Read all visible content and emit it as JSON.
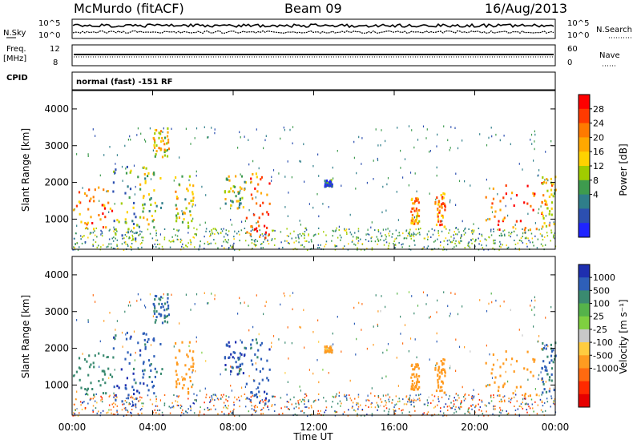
{
  "header": {
    "station": "McMurdo (fitACF)",
    "beam": "Beam 09",
    "date": "16/Aug/2013"
  },
  "top_panels": {
    "noise": {
      "left_label_1": "N.Sky",
      "right_label_1": "N.Search",
      "left_ticks": [
        "10^5",
        "10^0"
      ],
      "right_ticks": [
        "10^5",
        "10^0"
      ]
    },
    "freq": {
      "left_label_1": "Freq.",
      "left_label_2": "[MHz]",
      "right_label_1": "Nave",
      "left_ticks": [
        "12",
        "8"
      ],
      "right_ticks": [
        "60",
        "0"
      ]
    },
    "cpid": {
      "label": "CPID",
      "text": "normal (fast) -151 RF"
    }
  },
  "x_axis": {
    "label": "Time UT",
    "ticks": [
      "00:00",
      "04:00",
      "08:00",
      "12:00",
      "16:00",
      "20:00",
      "00:00"
    ]
  },
  "power_panel": {
    "ylabel": "Slant Range [km]",
    "yticks": [
      "4000",
      "3000",
      "2000",
      "1000"
    ],
    "colorbar_label": "Power [dB]",
    "colorbar_ticks": [
      "28",
      "24",
      "20",
      "16",
      "12",
      "8",
      "4"
    ],
    "colorbar_colors": [
      "#ff0000",
      "#ff3a00",
      "#ff7a00",
      "#ffa800",
      "#ffd200",
      "#a0cc00",
      "#3e9b4e",
      "#2f7e8a",
      "#2c4fb0",
      "#1f24ff"
    ]
  },
  "velocity_panel": {
    "ylabel": "Slant Range [km]",
    "yticks": [
      "4000",
      "3000",
      "2000",
      "1000"
    ],
    "colorbar_label": "Velocity [m s⁻¹]",
    "colorbar_ticks": [
      "1000",
      "500",
      "100",
      "25",
      "-25",
      "-100",
      "-500",
      "-1000"
    ],
    "colorbar_colors": [
      "#1e2fb0",
      "#2e5fb8",
      "#3a8a70",
      "#55b34a",
      "#7fd040",
      "#c8c8c8",
      "#ffcc40",
      "#ff9b20",
      "#ff6a10",
      "#ff2a00",
      "#e60000"
    ]
  },
  "chart_data": [
    {
      "type": "heatmap",
      "title": "Power",
      "xlabel": "Time UT",
      "ylabel": "Slant Range [km]",
      "xlim": [
        0,
        24
      ],
      "ylim": [
        180,
        4500
      ],
      "colorbar": "Power [dB]",
      "features": [
        {
          "t_start": 0.0,
          "t_end": 2.0,
          "range_low": 700,
          "range_high": 1900,
          "power_db": 24
        },
        {
          "t_start": 2.0,
          "t_end": 3.3,
          "range_low": 400,
          "range_high": 2500,
          "power_db": 10
        },
        {
          "t_start": 3.3,
          "t_end": 4.5,
          "range_low": 800,
          "range_high": 2500,
          "power_db": 14
        },
        {
          "t_start": 4.0,
          "t_end": 4.8,
          "range_low": 2700,
          "range_high": 3500,
          "power_db": 18
        },
        {
          "t_start": 5.0,
          "t_end": 6.0,
          "range_low": 800,
          "range_high": 2200,
          "power_db": 16
        },
        {
          "t_start": 7.5,
          "t_end": 8.6,
          "range_low": 1300,
          "range_high": 2200,
          "power_db": 14
        },
        {
          "t_start": 8.6,
          "t_end": 9.8,
          "range_low": 500,
          "range_high": 2300,
          "power_db": 26
        },
        {
          "t_start": 12.5,
          "t_end": 12.9,
          "range_low": 1900,
          "range_high": 2100,
          "power_db": 6
        },
        {
          "t_start": 16.8,
          "t_end": 17.2,
          "range_low": 900,
          "range_high": 1600,
          "power_db": 22
        },
        {
          "t_start": 18.0,
          "t_end": 18.5,
          "range_low": 800,
          "range_high": 1800,
          "power_db": 24
        },
        {
          "t_start": 20.5,
          "t_end": 23.3,
          "range_low": 700,
          "range_high": 2100,
          "power_db": 26
        },
        {
          "t_start": 23.3,
          "t_end": 24.0,
          "range_low": 800,
          "range_high": 2200,
          "power_db": 20
        }
      ]
    },
    {
      "type": "heatmap",
      "title": "Velocity",
      "xlabel": "Time UT",
      "ylabel": "Slant Range [km]",
      "xlim": [
        0,
        24
      ],
      "ylim": [
        180,
        4500
      ],
      "colorbar": "Velocity [m s⁻¹]",
      "features": [
        {
          "t_start": 0.0,
          "t_end": 2.0,
          "range_low": 700,
          "range_high": 1900,
          "velocity": 300
        },
        {
          "t_start": 2.0,
          "t_end": 3.3,
          "range_low": 400,
          "range_high": 2500,
          "velocity": 800
        },
        {
          "t_start": 3.3,
          "t_end": 4.5,
          "range_low": 800,
          "range_high": 2500,
          "velocity": 700
        },
        {
          "t_start": 4.0,
          "t_end": 4.8,
          "range_low": 2700,
          "range_high": 3500,
          "velocity": 500
        },
        {
          "t_start": 5.0,
          "t_end": 6.0,
          "range_low": 800,
          "range_high": 2200,
          "velocity": -300
        },
        {
          "t_start": 7.5,
          "t_end": 8.6,
          "range_low": 1300,
          "range_high": 2200,
          "velocity": 800
        },
        {
          "t_start": 8.6,
          "t_end": 9.8,
          "range_low": 500,
          "range_high": 2300,
          "velocity": 700
        },
        {
          "t_start": 12.5,
          "t_end": 12.9,
          "range_low": 1900,
          "range_high": 2100,
          "velocity": -100
        },
        {
          "t_start": 16.8,
          "t_end": 17.2,
          "range_low": 900,
          "range_high": 1600,
          "velocity": -300
        },
        {
          "t_start": 18.0,
          "t_end": 18.5,
          "range_low": 800,
          "range_high": 1800,
          "velocity": -300
        },
        {
          "t_start": 20.5,
          "t_end": 23.3,
          "range_low": 700,
          "range_high": 2100,
          "velocity": -300
        },
        {
          "t_start": 23.3,
          "t_end": 24.0,
          "range_low": 800,
          "range_high": 2200,
          "velocity": 600
        }
      ]
    }
  ]
}
